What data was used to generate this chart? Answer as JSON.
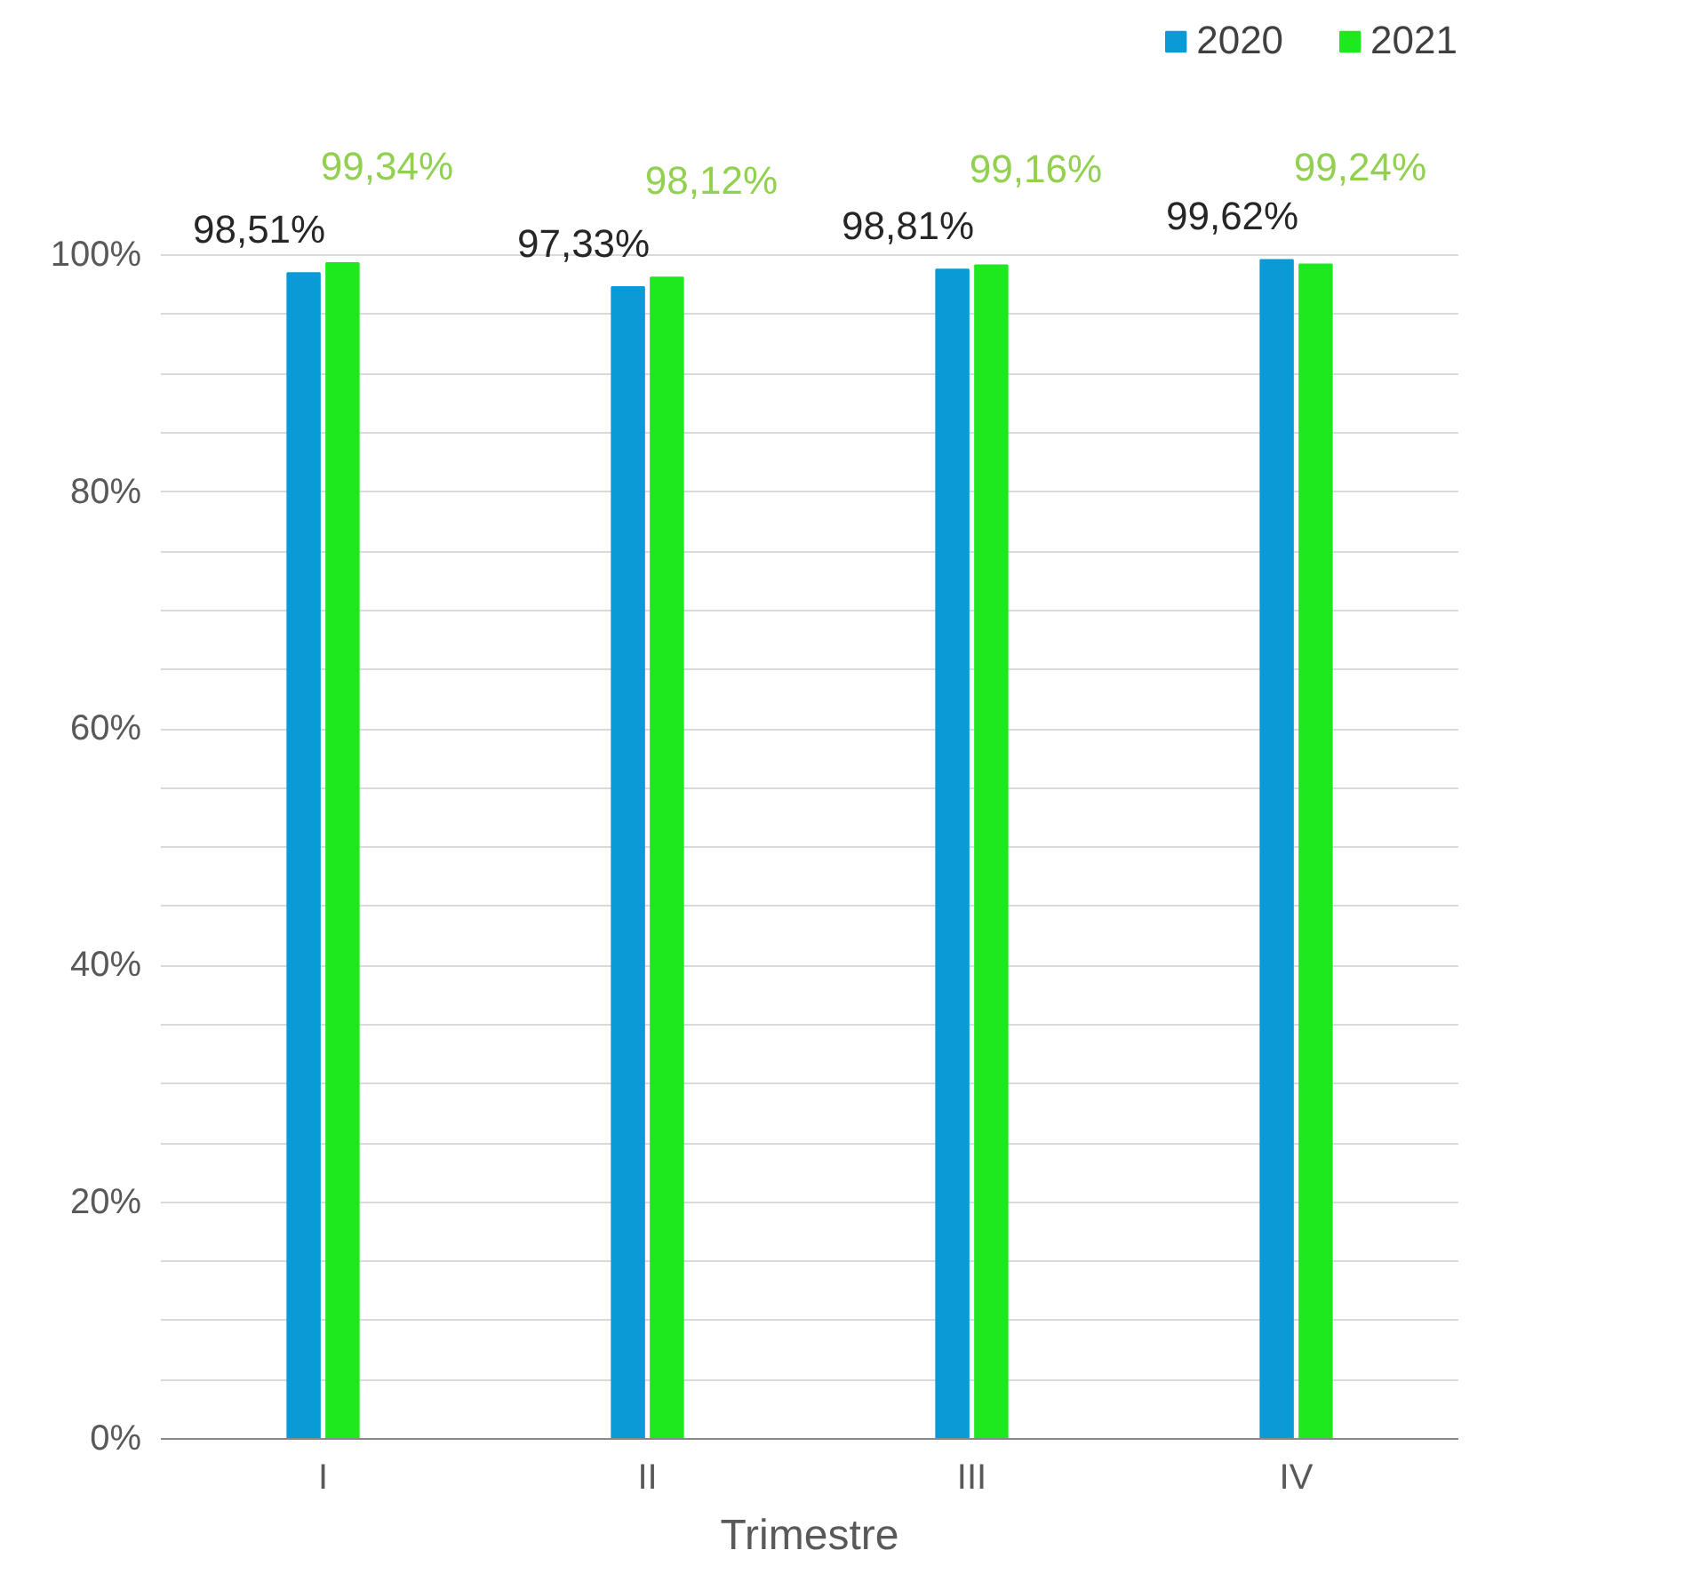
{
  "chart_data": {
    "type": "bar",
    "xlabel": "Trimestre",
    "categories": [
      "I",
      "II",
      "III",
      "IV"
    ],
    "series": [
      {
        "name": "2020",
        "color": "#0a9bd6",
        "values": [
          98.51,
          97.33,
          98.81,
          99.62
        ],
        "value_labels": [
          "98,51%",
          "97,33%",
          "98,81%",
          "99,62%"
        ]
      },
      {
        "name": "2021",
        "color": "#1ee81e",
        "values": [
          99.34,
          98.12,
          99.16,
          99.24
        ],
        "value_labels": [
          "99,34%",
          "98,12%",
          "99,16%",
          "99,24%"
        ]
      }
    ],
    "ylim": [
      0,
      100
    ],
    "yticks": [
      {
        "value": 0,
        "label": "0%"
      },
      {
        "value": 5,
        "label": null
      },
      {
        "value": 10,
        "label": null
      },
      {
        "value": 15,
        "label": null
      },
      {
        "value": 20,
        "label": "20%"
      },
      {
        "value": 25,
        "label": null
      },
      {
        "value": 30,
        "label": null
      },
      {
        "value": 35,
        "label": null
      },
      {
        "value": 40,
        "label": "40%"
      },
      {
        "value": 45,
        "label": null
      },
      {
        "value": 50,
        "label": null
      },
      {
        "value": 55,
        "label": null
      },
      {
        "value": 60,
        "label": "60%"
      },
      {
        "value": 65,
        "label": null
      },
      {
        "value": 70,
        "label": null
      },
      {
        "value": 75,
        "label": null
      },
      {
        "value": 80,
        "label": "80%"
      },
      {
        "value": 85,
        "label": null
      },
      {
        "value": 90,
        "label": null
      },
      {
        "value": 95,
        "label": null
      },
      {
        "value": 100,
        "label": "100%"
      }
    ],
    "grid": "y",
    "legend": "top right"
  }
}
